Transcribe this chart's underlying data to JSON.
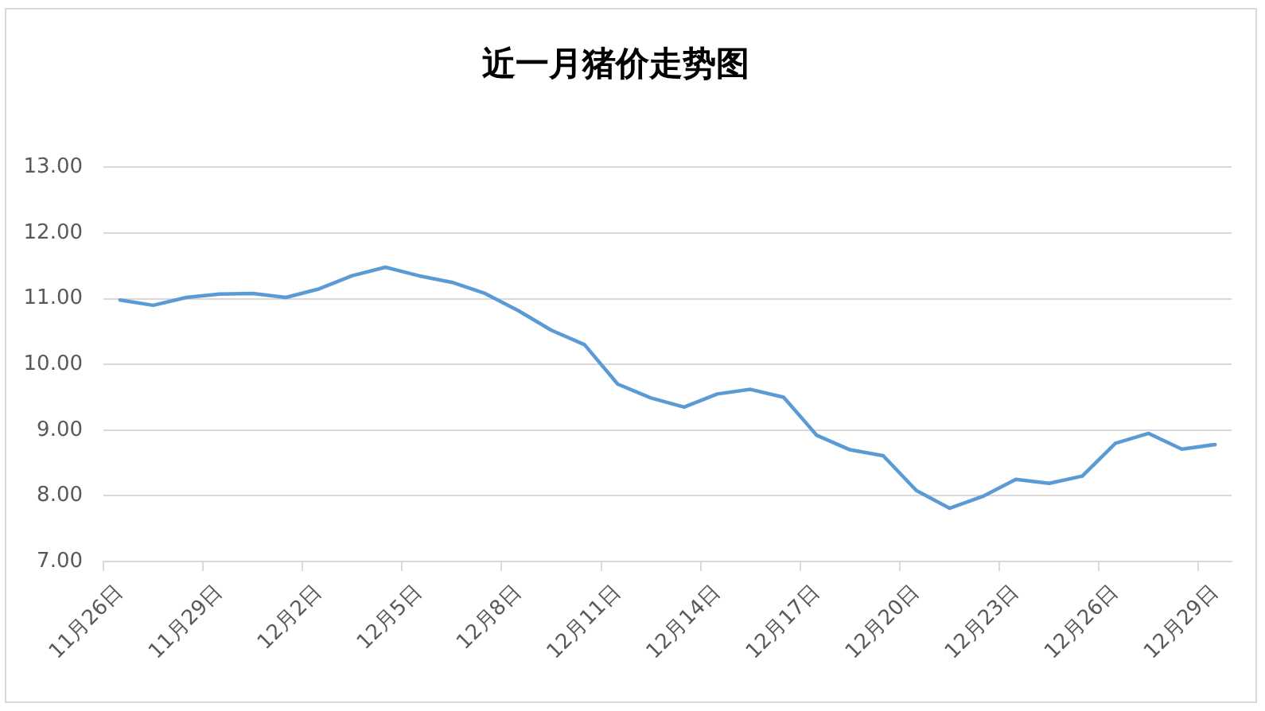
{
  "chart_data": {
    "type": "line",
    "title": "近一月猪价走势图",
    "categories": [
      "11月26日",
      null,
      null,
      "11月29日",
      null,
      null,
      "12月2日",
      null,
      null,
      "12月5日",
      null,
      null,
      "12月8日",
      null,
      null,
      "12月11日",
      null,
      null,
      "12月14日",
      null,
      null,
      "12月17日",
      null,
      null,
      "12月20日",
      null,
      null,
      "12月23日",
      null,
      null,
      "12月26日",
      null,
      null,
      "12月29日"
    ],
    "series": [
      {
        "color": "#5b9bd5",
        "values": [
          10.98,
          10.9,
          11.02,
          11.07,
          11.08,
          11.02,
          11.15,
          11.35,
          11.48,
          11.35,
          11.25,
          11.08,
          10.82,
          10.52,
          10.3,
          9.7,
          9.49,
          9.35,
          9.55,
          9.62,
          9.5,
          8.92,
          8.7,
          8.61,
          8.08,
          7.81,
          7.99,
          8.25,
          8.19,
          8.3,
          8.8,
          8.95,
          8.71,
          8.78
        ]
      }
    ],
    "ylim": [
      7,
      13
    ],
    "yticks": [
      {
        "value": 7,
        "label": "7.00"
      },
      {
        "value": 8,
        "label": "8.00"
      },
      {
        "value": 9,
        "label": "9.00"
      },
      {
        "value": 10,
        "label": "10.00"
      },
      {
        "value": 11,
        "label": "11.00"
      },
      {
        "value": 12,
        "label": "12.00"
      },
      {
        "value": 13,
        "label": "13.00"
      }
    ],
    "grid": "y",
    "marker": "none",
    "line_style": "solid"
  }
}
